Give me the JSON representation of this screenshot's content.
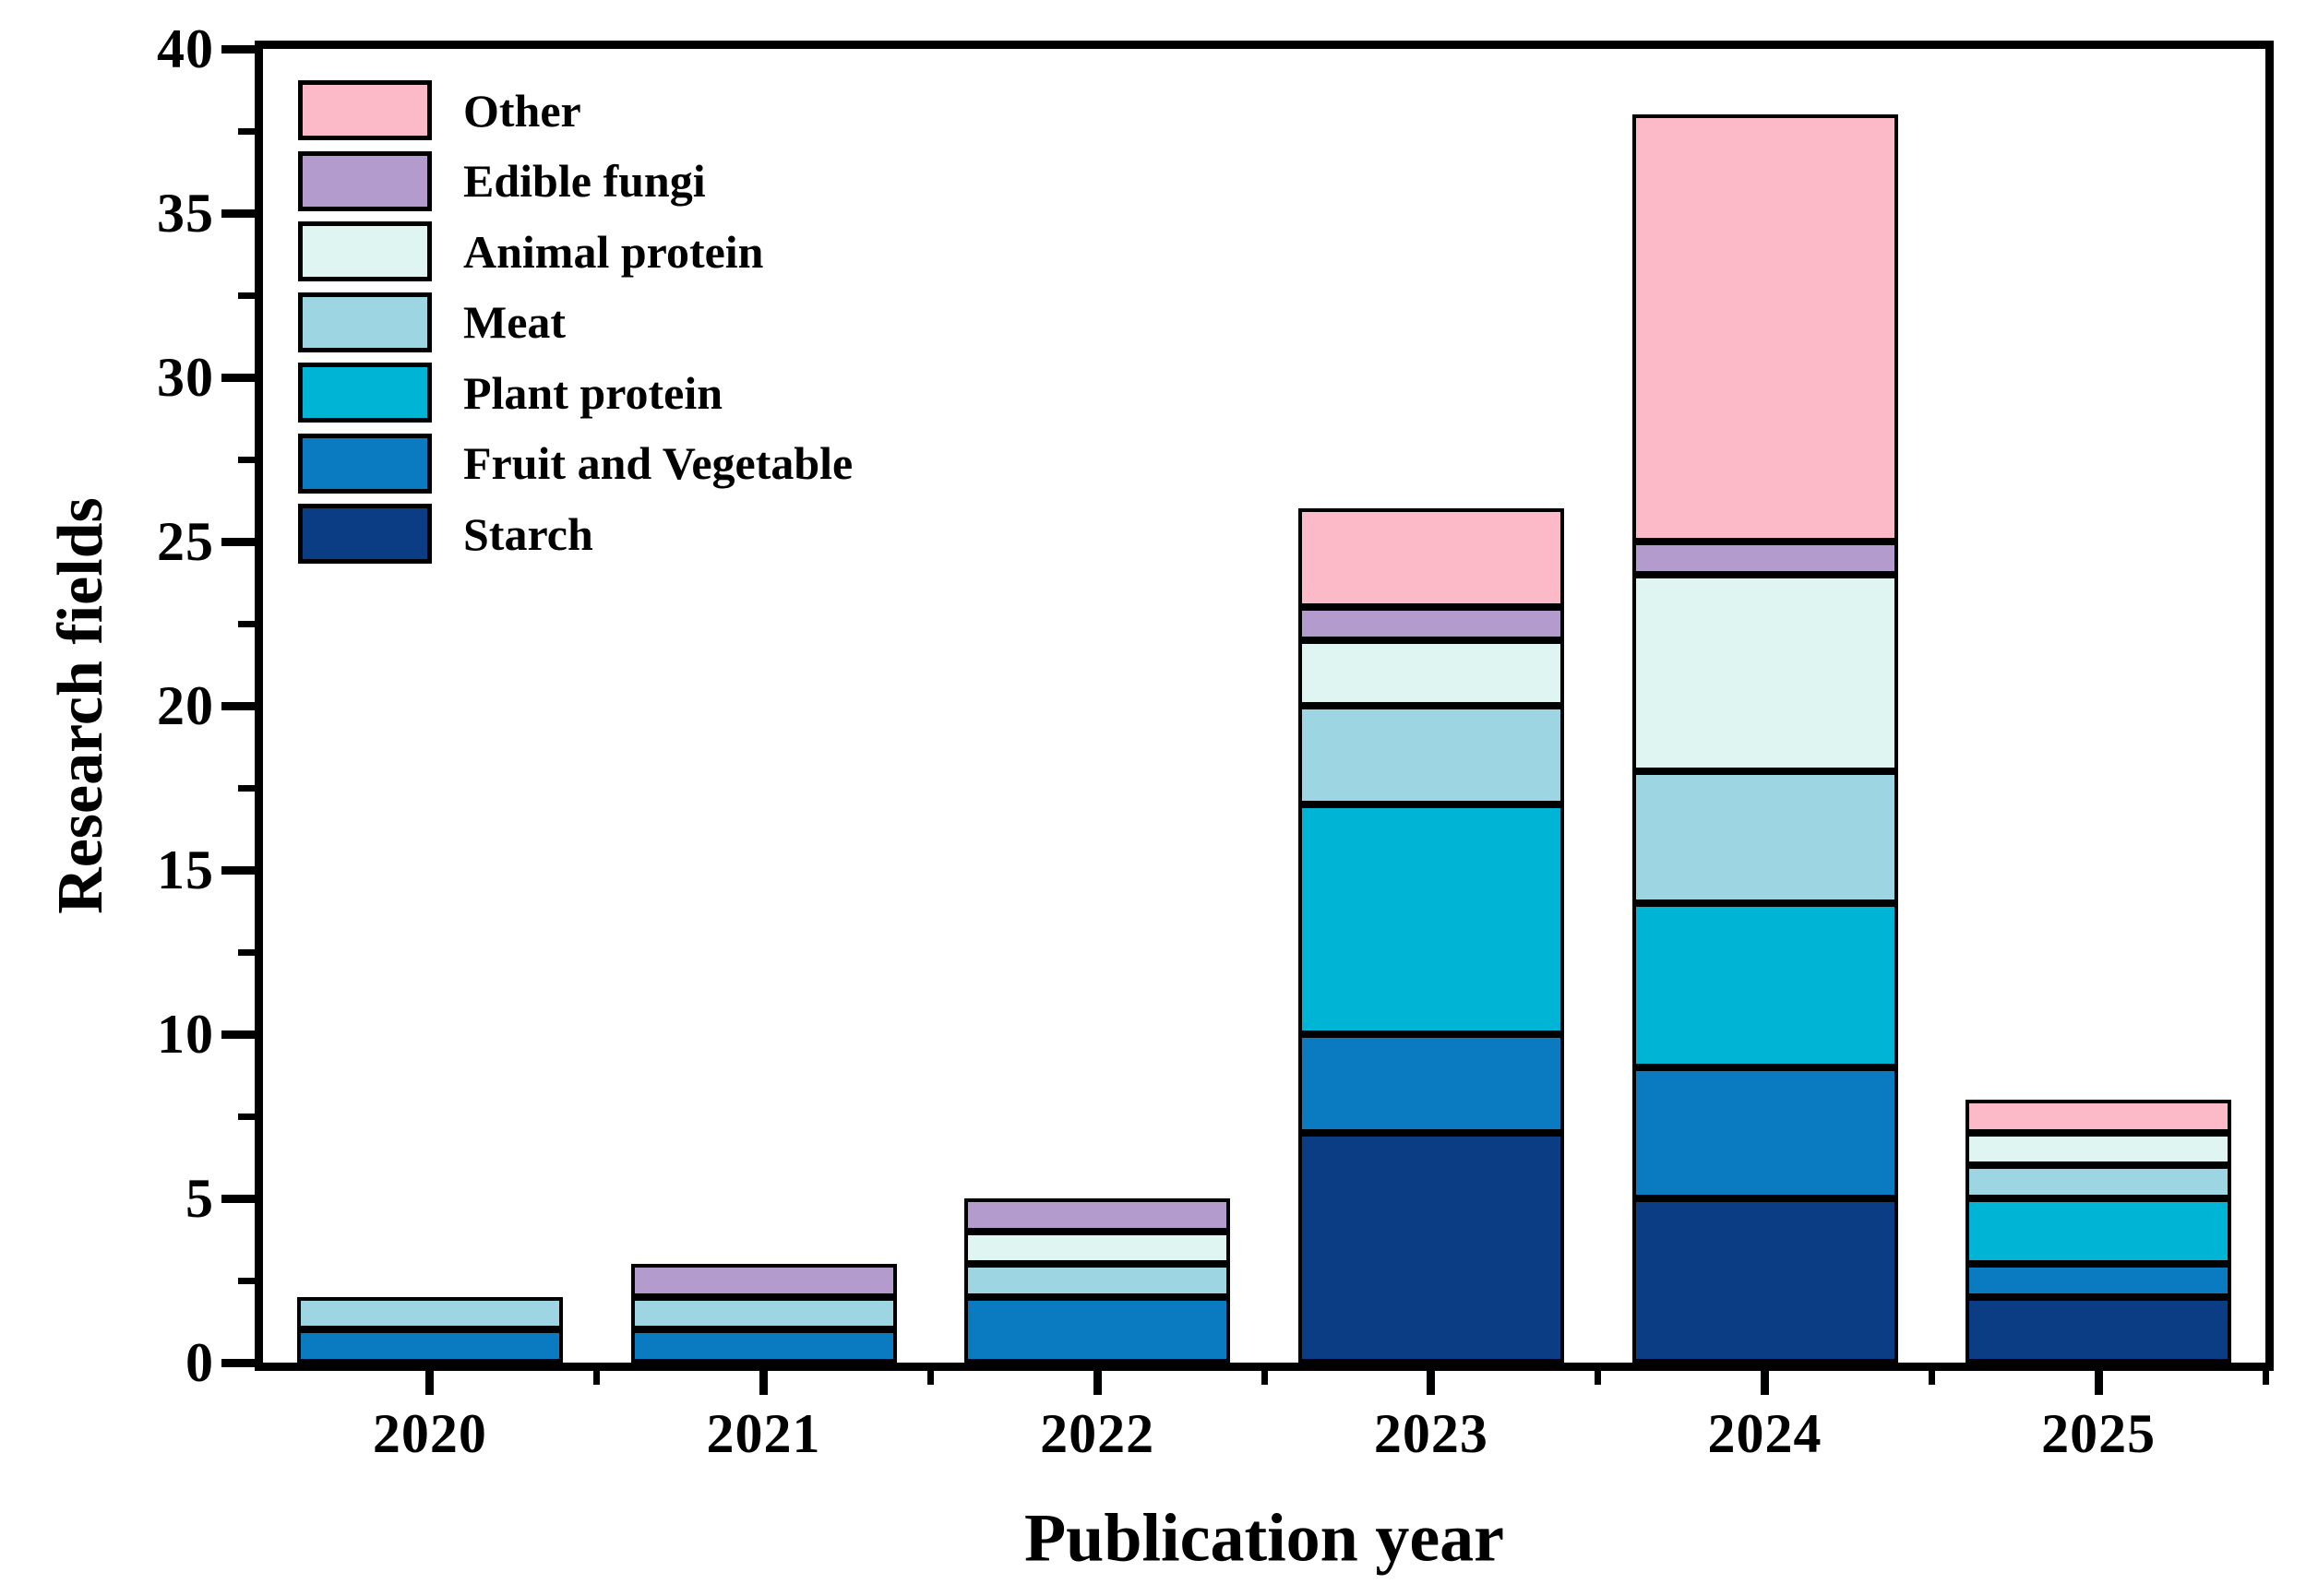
{
  "page": {
    "background": "#ffffff",
    "text_color": "#000000"
  },
  "chart_data": {
    "type": "bar",
    "stacked": true,
    "title": "",
    "xlabel": "Publication year",
    "ylabel": "Research fields",
    "categories": [
      "2020",
      "2021",
      "2022",
      "2023",
      "2024",
      "2025"
    ],
    "series": [
      {
        "name": "Starch",
        "color": "#0b3d85",
        "values": [
          0,
          0,
          0,
          7,
          5,
          2
        ]
      },
      {
        "name": "Fruit and Vegetable",
        "color": "#0a7ac1",
        "values": [
          1,
          1,
          2,
          3,
          4,
          1
        ]
      },
      {
        "name": "Plant protein",
        "color": "#00b4d6",
        "values": [
          0,
          0,
          0,
          7,
          5,
          2
        ]
      },
      {
        "name": "Meat",
        "color": "#9dd5e3",
        "values": [
          1,
          1,
          1,
          3,
          4,
          1
        ]
      },
      {
        "name": "Animal protein",
        "color": "#def5f2",
        "values": [
          0,
          0,
          1,
          2,
          6,
          1
        ]
      },
      {
        "name": "Edible fungi",
        "color": "#b39bce",
        "values": [
          0,
          1,
          1,
          1,
          1,
          0
        ]
      },
      {
        "name": "Other",
        "color": "#fcb9c8",
        "values": [
          0,
          0,
          0,
          3,
          13,
          1
        ]
      }
    ],
    "totals": [
      2,
      3,
      5,
      26,
      38,
      8
    ],
    "ylim": [
      0,
      40
    ],
    "ytick_labels": [
      "0",
      "5",
      "10",
      "15",
      "20",
      "25",
      "30",
      "35",
      "40"
    ],
    "ytick_major_step": 5,
    "ytick_minor_step": 2.5,
    "legend_order": [
      "Other",
      "Edible fungi",
      "Animal protein",
      "Meat",
      "Plant protein",
      "Fruit and Vegetable",
      "Starch"
    ],
    "legend_position": "top-left",
    "grid": false,
    "axis_color": "#000000",
    "bar_outline_color": "#000000"
  }
}
